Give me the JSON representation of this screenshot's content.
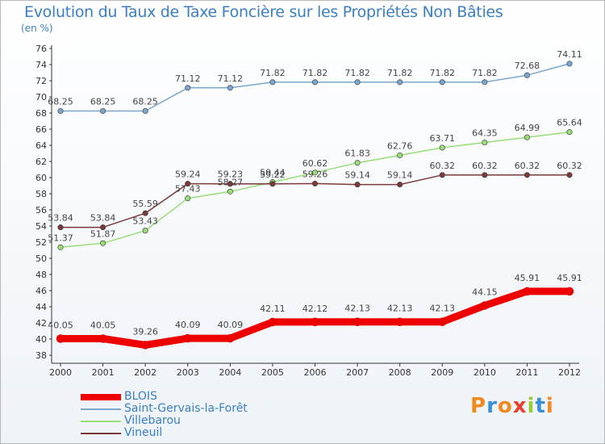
{
  "header": {
    "title": "Evolution du Taux de Taxe Foncière sur les Propriétés Non Bâties",
    "subtitle": "(en %)"
  },
  "logo": {
    "text": "Proxiti",
    "colors": [
      "#f08a1c",
      "#3a8fd6",
      "#f08a1c",
      "#e8402c",
      "#9acd32",
      "#3a8fd6",
      "#f08a1c"
    ]
  },
  "chart_data": {
    "type": "line",
    "title": "Evolution du Taux de Taxe Foncière sur les Propriétés Non Bâties",
    "ylabel": "(en %)",
    "xlabel": "",
    "x": [
      "2000",
      "2001",
      "2002",
      "2003",
      "2004",
      "2005",
      "2006",
      "2007",
      "2008",
      "2009",
      "2010",
      "2011",
      "2012"
    ],
    "ylim": [
      38,
      76
    ],
    "yticks": [
      38,
      40,
      42,
      44,
      46,
      48,
      50,
      52,
      54,
      56,
      58,
      60,
      62,
      64,
      66,
      68,
      70,
      72,
      74,
      76
    ],
    "grid": false,
    "legend_position": "bottom-left",
    "series": [
      {
        "name": "BLOIS",
        "color": "#ee0000",
        "values": [
          40.05,
          40.05,
          39.26,
          40.09,
          40.09,
          42.11,
          42.12,
          42.13,
          42.13,
          42.13,
          44.15,
          45.91,
          45.91
        ],
        "labels": [
          "40.05",
          "40.05",
          "39.26",
          "40.09",
          "40.09",
          "42.11",
          "42.12",
          "42.13",
          "42.13",
          "42.13",
          "44.15",
          "45.91",
          "45.91"
        ]
      },
      {
        "name": "Saint-Gervais-la-Forêt",
        "color": "#7aa7cf",
        "values": [
          68.25,
          68.25,
          68.25,
          71.12,
          71.12,
          71.82,
          71.82,
          71.82,
          71.82,
          71.82,
          71.82,
          72.68,
          74.11
        ],
        "labels": [
          "68.25",
          "68.25",
          "68.25",
          "71.12",
          "71.12",
          "71.82",
          "71.82",
          "71.82",
          "71.82",
          "71.82",
          "71.82",
          "72.68",
          "74.11"
        ]
      },
      {
        "name": "Villebarou",
        "color": "#99dd77",
        "values": [
          51.37,
          51.87,
          53.43,
          57.43,
          58.27,
          59.44,
          60.62,
          61.83,
          62.76,
          63.71,
          64.35,
          64.99,
          65.64
        ],
        "labels": [
          "51.37",
          "51.87",
          "53.43",
          "57.43",
          "58.27",
          "59.44",
          "60.62",
          "61.83",
          "62.76",
          "63.71",
          "64.35",
          "64.99",
          "65.64"
        ]
      },
      {
        "name": "Vineuil",
        "color": "#7a3a3a",
        "values": [
          53.84,
          53.84,
          55.59,
          59.24,
          59.23,
          59.22,
          59.26,
          59.14,
          59.14,
          60.32,
          60.32,
          60.32,
          60.32
        ],
        "labels": [
          "53.84",
          "53.84",
          "55.59",
          "59.24",
          "59.23",
          "59.22",
          "59.26",
          "59.14",
          "59.14",
          "60.32",
          "60.32",
          "60.32",
          "60.32"
        ]
      }
    ]
  }
}
